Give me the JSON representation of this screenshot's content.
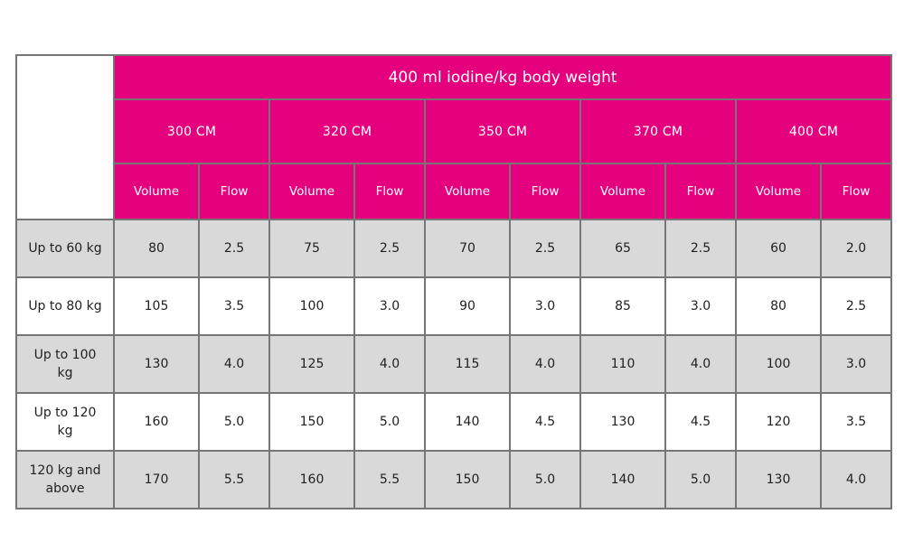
{
  "colors": {
    "header_bg": "#e5007d",
    "header_text": "#ffffff",
    "border": "#767676",
    "row_stripe": "#d9d9d9",
    "cell_text": "#1f1f1f"
  },
  "chart_data": {
    "type": "table",
    "title": "400 ml iodine/kg body weight",
    "column_groups": [
      "300 CM",
      "320 CM",
      "350 CM",
      "370 CM",
      "400 CM"
    ],
    "subcolumns": [
      "Volume",
      "Flow"
    ],
    "row_labels": [
      "Up to 60 kg",
      "Up to 80 kg",
      "Up to 100 kg",
      "Up to 120 kg",
      "120 kg and above"
    ],
    "rows": [
      [
        "80",
        "2.5",
        "75",
        "2.5",
        "70",
        "2.5",
        "65",
        "2.5",
        "60",
        "2.0"
      ],
      [
        "105",
        "3.5",
        "100",
        "3.0",
        "90",
        "3.0",
        "85",
        "3.0",
        "80",
        "2.5"
      ],
      [
        "130",
        "4.0",
        "125",
        "4.0",
        "115",
        "4.0",
        "110",
        "4.0",
        "100",
        "3.0"
      ],
      [
        "160",
        "5.0",
        "150",
        "5.0",
        "140",
        "4.5",
        "130",
        "4.5",
        "120",
        "3.5"
      ],
      [
        "170",
        "5.5",
        "160",
        "5.5",
        "150",
        "5.0",
        "140",
        "5.0",
        "130",
        "4.0"
      ]
    ],
    "layout": {
      "striped_rows": "odd rows gray, even rows white",
      "header_style": "magenta background, white text, title bold"
    }
  }
}
